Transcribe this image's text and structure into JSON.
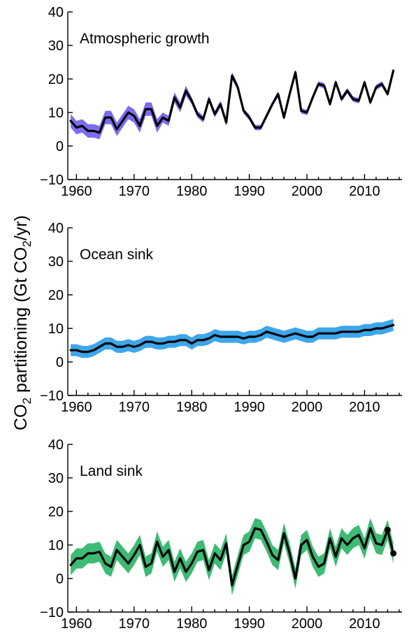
{
  "figure": {
    "ylabel_prefix": "CO",
    "ylabel_subscript": "2",
    "ylabel_middle": " partitioning (Gt CO",
    "ylabel_subscript2": "2",
    "ylabel_suffix": "/yr)"
  },
  "chart_data": [
    {
      "type": "line",
      "title": "Atmospheric growth",
      "xlim": [
        1958.5,
        2016.5
      ],
      "ylim": [
        -10,
        40
      ],
      "xticks": [
        1960,
        1970,
        1980,
        1990,
        2000,
        2010
      ],
      "yticks": [
        -10,
        0,
        10,
        20,
        30,
        40
      ],
      "xtick_labels": [
        "1960",
        "1970",
        "1980",
        "1990",
        "2000",
        "2010"
      ],
      "ytick_labels": [
        "−10",
        "0",
        "10",
        "20",
        "30",
        "40"
      ],
      "band_color": "#7b6cf0",
      "line_color": "#000000",
      "x": [
        1959,
        1960,
        1961,
        1962,
        1963,
        1964,
        1965,
        1966,
        1967,
        1968,
        1969,
        1970,
        1971,
        1972,
        1973,
        1974,
        1975,
        1976,
        1977,
        1978,
        1979,
        1980,
        1981,
        1982,
        1983,
        1984,
        1985,
        1986,
        1987,
        1988,
        1989,
        1990,
        1991,
        1992,
        1993,
        1994,
        1995,
        1996,
        1997,
        1998,
        1999,
        2000,
        2001,
        2002,
        2003,
        2004,
        2005,
        2006,
        2007,
        2008,
        2009,
        2010,
        2011,
        2012,
        2013,
        2014,
        2015
      ],
      "values": [
        7.5,
        5.5,
        6,
        4.5,
        4.5,
        4,
        8.5,
        8.5,
        5,
        7.5,
        10,
        9,
        6,
        11,
        11,
        6,
        8.5,
        7.5,
        14.5,
        11.5,
        16.5,
        13.5,
        9.5,
        8,
        14,
        9.5,
        12.5,
        7,
        21,
        17.5,
        10.5,
        8.5,
        5.5,
        5.5,
        9,
        12.5,
        15.5,
        8.5,
        15.5,
        22,
        10.5,
        10,
        14.5,
        18.5,
        18,
        12.5,
        19,
        14,
        16.5,
        14,
        13.5,
        19,
        13,
        17.5,
        18.5,
        15.5,
        22.5
      ],
      "band_halfwidth": [
        2,
        2,
        2,
        2,
        2,
        2,
        2,
        2,
        2,
        2,
        2,
        2,
        2,
        2,
        2,
        2,
        1.5,
        1.5,
        1.5,
        1.5,
        1.5,
        1,
        1,
        1,
        1,
        1,
        1,
        1,
        1,
        1,
        0.8,
        0.8,
        0.8,
        0.8,
        0.8,
        0.8,
        0.8,
        0.8,
        0.8,
        0.8,
        0.8,
        0.8,
        0.8,
        0.8,
        0.8,
        0.8,
        0.8,
        0.8,
        0.8,
        0.8,
        0.8,
        0.8,
        0.8,
        0.8,
        0.8,
        0.8,
        0.8
      ]
    },
    {
      "type": "line",
      "title": "Ocean sink",
      "xlim": [
        1958.5,
        2016.5
      ],
      "ylim": [
        -10,
        40
      ],
      "xticks": [
        1960,
        1970,
        1980,
        1990,
        2000,
        2010
      ],
      "yticks": [
        -10,
        0,
        10,
        20,
        30,
        40
      ],
      "xtick_labels": [
        "1960",
        "1970",
        "1980",
        "1990",
        "2000",
        "2010"
      ],
      "ytick_labels": [
        "−10",
        "0",
        "10",
        "20",
        "30",
        "40"
      ],
      "band_color": "#3ea6ea",
      "line_color": "#000000",
      "x": [
        1959,
        1960,
        1961,
        1962,
        1963,
        1964,
        1965,
        1966,
        1967,
        1968,
        1969,
        1970,
        1971,
        1972,
        1973,
        1974,
        1975,
        1976,
        1977,
        1978,
        1979,
        1980,
        1981,
        1982,
        1983,
        1984,
        1985,
        1986,
        1987,
        1988,
        1989,
        1990,
        1991,
        1992,
        1993,
        1994,
        1995,
        1996,
        1997,
        1998,
        1999,
        2000,
        2001,
        2002,
        2003,
        2004,
        2005,
        2006,
        2007,
        2008,
        2009,
        2010,
        2011,
        2012,
        2013,
        2014,
        2015
      ],
      "values": [
        3.5,
        3.5,
        3,
        3,
        3.5,
        4.5,
        5.5,
        5.5,
        4.5,
        4.5,
        5,
        4.5,
        5,
        6,
        6,
        5.5,
        5.5,
        6,
        6,
        6.5,
        6.5,
        5.5,
        6.5,
        6.5,
        7,
        8,
        7.5,
        7.5,
        7.5,
        7.5,
        7,
        7.5,
        7.5,
        8,
        9,
        8.5,
        8,
        7.5,
        8,
        8.5,
        8,
        7.5,
        7.5,
        8.5,
        8.5,
        8.5,
        8.5,
        9,
        9,
        9,
        9,
        9.5,
        9.5,
        10,
        10,
        10.5,
        11
      ],
      "band_halfwidth": [
        1.8,
        1.8,
        1.8,
        1.8,
        1.8,
        1.8,
        1.8,
        1.8,
        1.8,
        1.8,
        1.8,
        1.8,
        1.8,
        1.8,
        1.8,
        1.8,
        1.8,
        1.8,
        1.8,
        1.8,
        1.8,
        1.8,
        1.8,
        1.8,
        1.8,
        1.8,
        1.8,
        1.8,
        1.8,
        1.8,
        1.8,
        1.8,
        1.8,
        1.8,
        1.8,
        1.8,
        1.8,
        1.8,
        1.8,
        1.8,
        1.8,
        1.8,
        1.8,
        1.8,
        1.8,
        1.8,
        1.8,
        1.8,
        1.8,
        1.8,
        1.8,
        1.8,
        1.8,
        1.8,
        1.8,
        1.8,
        1.8
      ]
    },
    {
      "type": "line",
      "title": "Land sink",
      "xlim": [
        1958.5,
        2016.5
      ],
      "ylim": [
        -10,
        40
      ],
      "xticks": [
        1960,
        1970,
        1980,
        1990,
        2000,
        2010
      ],
      "yticks": [
        -10,
        0,
        10,
        20,
        30,
        40
      ],
      "xtick_labels": [
        "1960",
        "1970",
        "1980",
        "1990",
        "2000",
        "2010"
      ],
      "ytick_labels": [
        "−10",
        "0",
        "10",
        "20",
        "30",
        "40"
      ],
      "band_color": "#3dba73",
      "line_color": "#000000",
      "x": [
        1959,
        1960,
        1961,
        1962,
        1963,
        1964,
        1965,
        1966,
        1967,
        1968,
        1969,
        1970,
        1971,
        1972,
        1973,
        1974,
        1975,
        1976,
        1977,
        1978,
        1979,
        1980,
        1981,
        1982,
        1983,
        1984,
        1985,
        1986,
        1987,
        1988,
        1989,
        1990,
        1991,
        1992,
        1993,
        1994,
        1995,
        1996,
        1997,
        1998,
        1999,
        2000,
        2001,
        2002,
        2003,
        2004,
        2005,
        2006,
        2007,
        2008,
        2009,
        2010,
        2011,
        2012,
        2013,
        2014,
        2015
      ],
      "values": [
        4,
        6,
        6,
        7.5,
        7.5,
        8,
        4.5,
        3.5,
        8.5,
        6.5,
        4.5,
        7,
        10,
        3.5,
        4.5,
        11,
        6.5,
        8.5,
        2,
        6,
        2,
        4.5,
        8,
        8.5,
        2.5,
        7.5,
        5.5,
        10.5,
        -2,
        4,
        10,
        11,
        15,
        14.5,
        11,
        7,
        5.5,
        13.5,
        7.5,
        0,
        10,
        11.5,
        6.5,
        3.5,
        4.5,
        12,
        6.5,
        12,
        10,
        12,
        13,
        9,
        15,
        10.5,
        10,
        14.5,
        7.5
      ],
      "band_halfwidth": [
        3,
        3,
        3,
        3,
        3,
        3,
        3,
        3,
        3,
        3,
        3,
        3,
        3,
        3,
        3,
        3,
        3,
        3,
        3,
        3,
        3,
        3,
        3,
        3,
        3,
        3,
        3,
        3,
        3,
        3,
        3,
        3,
        3,
        3,
        3,
        3,
        3,
        3,
        3,
        3,
        3,
        3,
        3,
        3,
        3,
        3,
        3,
        3,
        3,
        3,
        3,
        3,
        3,
        3,
        3,
        3,
        3
      ],
      "marked_points": [
        {
          "x": 2014,
          "y": 14.5
        },
        {
          "x": 2015,
          "y": 7.5
        }
      ]
    }
  ]
}
